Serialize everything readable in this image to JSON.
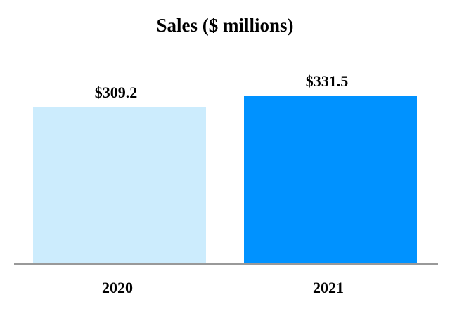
{
  "chart_data": {
    "type": "bar",
    "title": "Sales ($ millions)",
    "xlabel": "",
    "ylabel": "",
    "categories": [
      "2020",
      "2021"
    ],
    "values": [
      309.2,
      331.5
    ],
    "data_labels": [
      "$309.2",
      "$331.5"
    ],
    "colors": [
      "#CCECFD",
      "#0092FF"
    ],
    "axis_color": "#999999",
    "ylim": [
      0,
      350
    ],
    "grid": false,
    "legend": "none"
  }
}
